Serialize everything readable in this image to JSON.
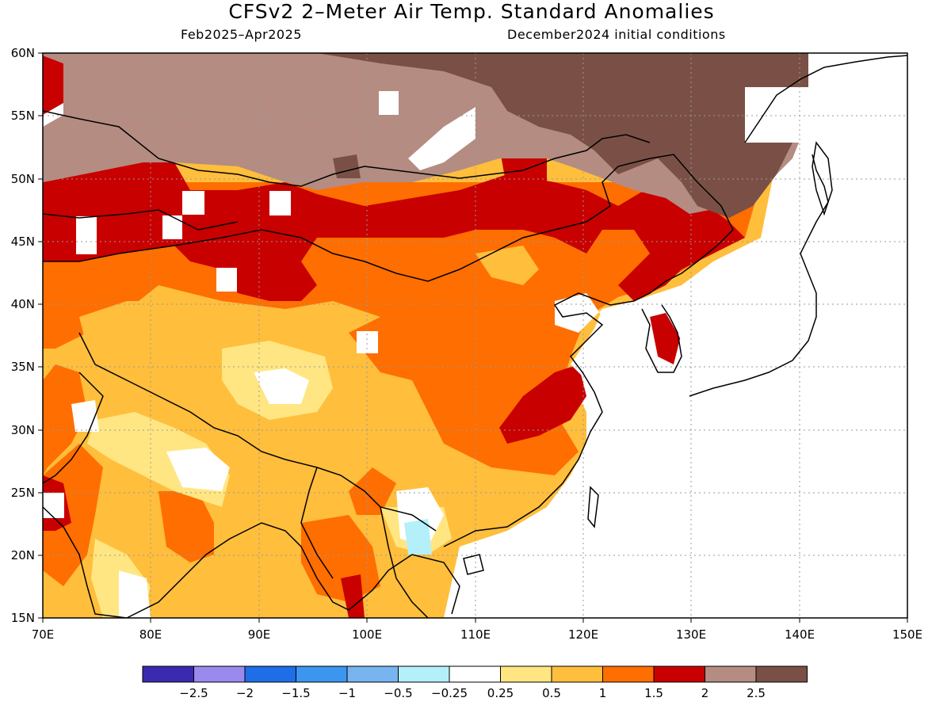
{
  "title": "CFSv2 2–Meter Air Temp. Standard Anomalies",
  "subtitle_left": "Feb2025–Apr2025",
  "subtitle_right": "December2024 initial conditions",
  "map": {
    "lon_range": [
      70,
      150
    ],
    "lat_range": [
      15,
      60
    ],
    "x_ticks": [
      "70E",
      "80E",
      "90E",
      "100E",
      "110E",
      "120E",
      "130E",
      "140E",
      "150E"
    ],
    "y_ticks": [
      "60N",
      "55N",
      "50N",
      "45N",
      "40N",
      "35N",
      "30N",
      "25N",
      "20N",
      "15N"
    ],
    "grid": true
  },
  "colorbar": {
    "colors": [
      "#3a2ab0",
      "#9a8aee",
      "#1e6ee8",
      "#3c96f0",
      "#78b4f0",
      "#b4f0fa",
      "#ffffff",
      "#ffe682",
      "#ffbe3c",
      "#ff6e00",
      "#c80000",
      "#b48c82",
      "#7a5046"
    ],
    "labels": [
      "−2.5",
      "−2",
      "−1.5",
      "−1",
      "−0.5",
      "−0.25",
      "0.25",
      "0.5",
      "1",
      "1.5",
      "2",
      "2.5"
    ]
  },
  "anomaly_colors": {
    "very_warm": "#7a5046",
    "warm_high": "#b48c82",
    "warm_2": "#c80000",
    "warm_15": "#ff6e00",
    "warm_1": "#ffbe3c",
    "warm_05": "#ffe682",
    "light_cool": "#b4f0fa"
  }
}
